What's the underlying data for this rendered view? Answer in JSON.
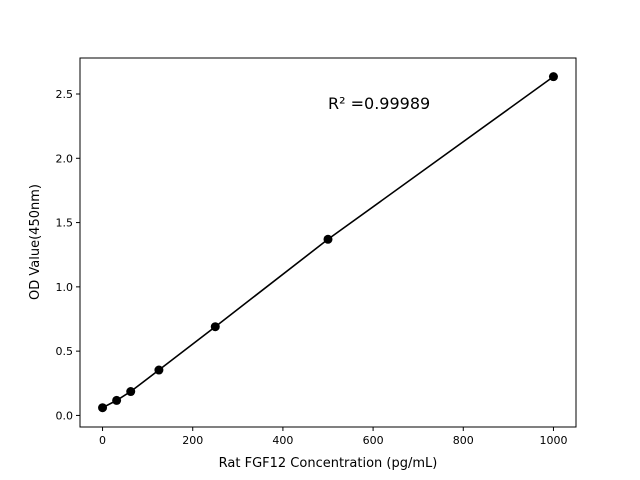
{
  "chart_data": {
    "type": "scatter",
    "title": "",
    "xlabel": "Rat FGF12 Concentration (pg/mL)",
    "ylabel": "OD Value(450nm)",
    "xlim": [
      -50,
      1050
    ],
    "ylim": [
      -0.09,
      2.78
    ],
    "xticks": [
      0,
      200,
      400,
      600,
      800,
      1000
    ],
    "yticks": [
      0.0,
      0.5,
      1.0,
      1.5,
      2.0,
      2.5
    ],
    "grid": false,
    "annotation": "R² =0.99989",
    "series": [
      {
        "x": [
          0,
          31.25,
          62.5,
          125,
          250,
          500,
          1000
        ],
        "y": [
          0.06,
          0.117,
          0.186,
          0.353,
          0.69,
          1.37,
          2.635
        ],
        "marker": "circle",
        "line": true,
        "color": "#000000"
      }
    ]
  }
}
